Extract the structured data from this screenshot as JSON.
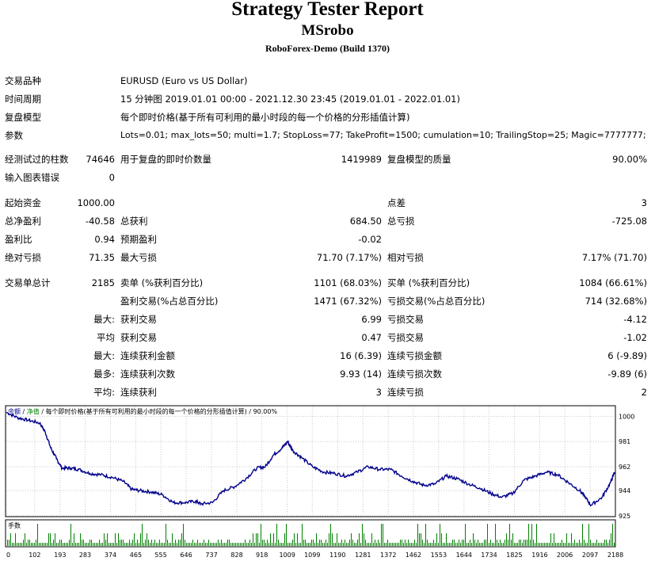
{
  "header": {
    "title": "Strategy Tester Report",
    "expert": "MSrobo",
    "server": "RoboForex-Demo (Build 1370)"
  },
  "settings": {
    "symbol_label": "交易品种",
    "symbol_value": "EURUSD (Euro vs US Dollar)",
    "period_label": "时间周期",
    "period_value": "15 分钟图 2019.01.01 00:00 - 2021.12.30 23:45 (2019.01.01 - 2022.01.01)",
    "model_label": "复盘模型",
    "model_value": "每个即时价格(基于所有可利用的最小时段的每一个价格的分形插值计算)",
    "params_label": "参数",
    "params_value": "Lots=0.01; max_lots=50; multi=1.7; StopLoss=77; TakeProfit=1500; cumulation=10; TrailingStop=25; Magic=7777777;"
  },
  "quality": {
    "bars_label": "经测试过的柱数",
    "bars_value": "74646",
    "ticks_label": "用于复盘的即时价数量",
    "ticks_value": "1419989",
    "modelling_label": "复盘模型的质量",
    "modelling_value": "90.00%",
    "errors_label": "输入图表错误",
    "errors_value": "0"
  },
  "results": {
    "deposit_label": "起始资金",
    "deposit_value": "1000.00",
    "spread_label": "点差",
    "spread_value": "3",
    "net_label": "总净盈利",
    "net_value": "-40.58",
    "gross_profit_label": "总获利",
    "gross_profit_value": "684.50",
    "gross_loss_label": "总亏损",
    "gross_loss_value": "-725.08",
    "pf_label": "盈利比",
    "pf_value": "0.94",
    "payoff_label": "预期盈利",
    "payoff_value": "-0.02",
    "abs_dd_label": "绝对亏损",
    "abs_dd_value": "71.35",
    "max_dd_label": "最大亏损",
    "max_dd_value": "71.70 (7.17%)",
    "rel_dd_label": "相对亏损",
    "rel_dd_value": "7.17% (71.70)"
  },
  "trades": {
    "total_label": "交易单总计",
    "total_value": "2185",
    "short_label": "卖单 (%获利百分比)",
    "short_value": "1101 (68.03%)",
    "long_label": "买单 (%获利百分比)",
    "long_value": "1084 (66.61%)",
    "profit_trades_label": "盈利交易(%占总百分比)",
    "profit_trades_value": "1471 (67.32%)",
    "loss_trades_label": "亏损交易(%占总百分比)",
    "loss_trades_value": "714 (32.68%)",
    "largest_prefix": "最大:",
    "largest_profit_label": "获利交易",
    "largest_profit_value": "6.99",
    "largest_loss_label": "亏损交易",
    "largest_loss_value": "-4.12",
    "average_prefix": "平均",
    "average_profit_label": "获利交易",
    "average_profit_value": "0.47",
    "average_loss_label": "亏损交易",
    "average_loss_value": "-1.02",
    "max_prefix": "最大:",
    "max_cons_wins_money_label": "连续获利金额",
    "max_cons_wins_money_value": "16 (6.39)",
    "max_cons_losses_money_label": "连续亏损金额",
    "max_cons_losses_money_value": "6 (-9.89)",
    "most_prefix": "最多:",
    "most_cons_profit_label": "连续获利次数",
    "most_cons_profit_value": "9.93 (14)",
    "most_cons_loss_label": "连续亏损次数",
    "most_cons_loss_value": "-9.89 (6)",
    "avg_cons_prefix": "平均:",
    "avg_cons_wins_label": "连续获利",
    "avg_cons_wins_value": "3",
    "avg_cons_losses_label": "连续亏损",
    "avg_cons_losses_value": "2"
  },
  "chart_data": {
    "type": "line",
    "legend_balance": "余额",
    "legend_equity": "净值",
    "legend_text": " / 每个即时价格(基于所有可利用的最小时段的每一个价格的分形插值计算) / 90.00%",
    "lots_label": "手数",
    "ylim": [
      925,
      1005
    ],
    "y_ticks": [
      1000,
      981,
      962,
      944,
      925
    ],
    "x_ticks": [
      0,
      102,
      193,
      283,
      374,
      465,
      555,
      646,
      737,
      828,
      918,
      1009,
      1099,
      1190,
      1281,
      1372,
      1462,
      1553,
      1644,
      1734,
      1825,
      1916,
      2006,
      2097,
      2188
    ],
    "xlim": [
      0,
      2185
    ],
    "colors": {
      "balance": "#00008b",
      "lots": "#008000",
      "legend_balance": "#00008b",
      "legend_equity": "#008000"
    },
    "series": [
      {
        "x": [
          0,
          40,
          80,
          120,
          140,
          160,
          180,
          200,
          230,
          260,
          300,
          340,
          380,
          420,
          450,
          480,
          520,
          560,
          600,
          640,
          680,
          700,
          740,
          780,
          820,
          860,
          900,
          930,
          960,
          990,
          1010,
          1030,
          1060,
          1100,
          1140,
          1180,
          1220,
          1260,
          1300,
          1340,
          1380,
          1420,
          1460,
          1500,
          1540,
          1580,
          1620,
          1660,
          1700,
          1740,
          1780,
          1820,
          1860,
          1900,
          1940,
          1980,
          2020,
          2060,
          2080,
          2100,
          2140,
          2170,
          2185
        ],
        "y": [
          1003,
          999,
          997,
          995,
          988,
          976,
          968,
          961,
          961,
          960,
          957,
          956,
          954,
          951,
          945,
          944,
          943,
          941,
          935,
          935,
          936,
          934,
          935,
          944,
          947,
          953,
          961,
          962,
          971,
          976,
          981,
          974,
          969,
          962,
          958,
          957,
          955,
          958,
          962,
          960,
          960,
          955,
          951,
          948,
          949,
          955,
          953,
          949,
          946,
          942,
          939,
          942,
          952,
          955,
          958,
          956,
          950,
          944,
          939,
          933,
          939,
          950,
          958
        ]
      }
    ]
  }
}
